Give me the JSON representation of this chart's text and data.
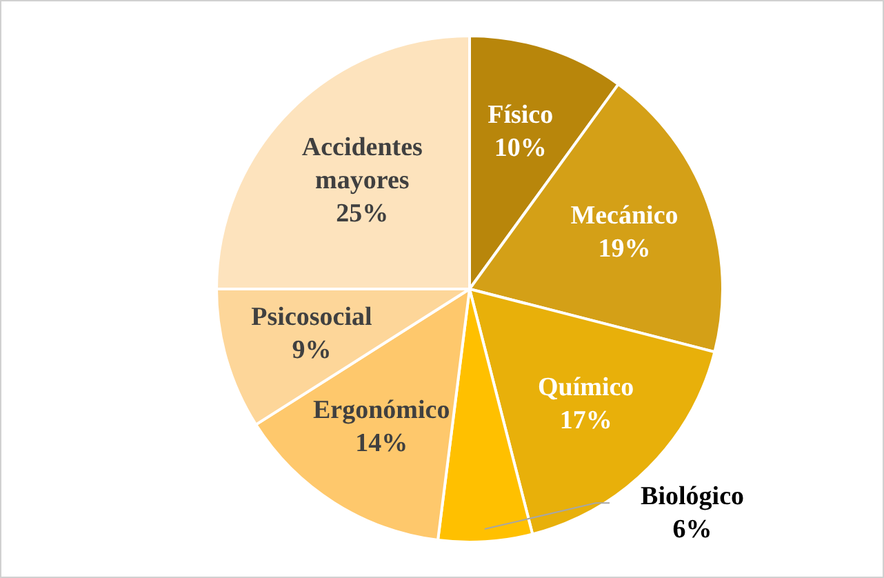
{
  "chart_data": {
    "type": "pie",
    "categories": [
      "Físico",
      "Mecánico",
      "Químico",
      "Biológico",
      "Ergonómico",
      "Psicosocial",
      "Accidentes mayores"
    ],
    "values": [
      10,
      19,
      17,
      6,
      14,
      9,
      25
    ],
    "value_labels": [
      "10%",
      "19%",
      "17%",
      "6%",
      "14%",
      "9%",
      "25%"
    ],
    "colors": [
      "#b8860b",
      "#d4a017",
      "#e8b00a",
      "#ffc000",
      "#fec86c",
      "#fdd699",
      "#fde3bd"
    ],
    "legend": false
  }
}
